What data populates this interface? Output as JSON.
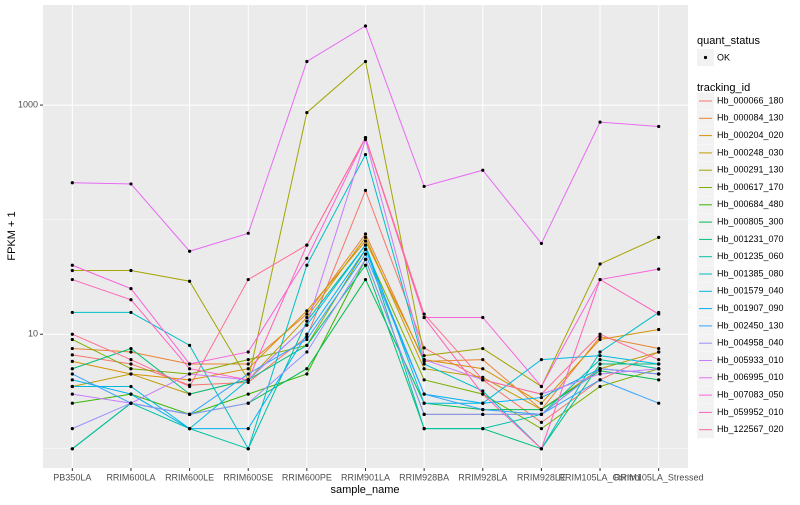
{
  "chart_data": {
    "type": "line",
    "x_label": "sample_name",
    "y_label": "FPKM + 1",
    "log_y": true,
    "grid": true,
    "minor_yticks": [
      1,
      100
    ],
    "ylim": [
      0.68,
      7470
    ],
    "yticks": [
      10,
      1000
    ],
    "categories": [
      "PB350LA",
      "RRIM600LA",
      "RRIM600LE",
      "RRIM600SE",
      "RRIM600PE",
      "RRIM901LA",
      "RRIM928BA",
      "RRIM928LA",
      "RRIM928LE",
      "RRIM105LA_Control",
      "RRIM105LA_Stressed"
    ],
    "point_legend_title": "quant_status",
    "point_legend_label": "OK",
    "point_color": "#000000",
    "legend_title": "tracking_id",
    "series": [
      {
        "name": "Hb_000066_180",
        "color": "#F8766D",
        "values": [
          6.6,
          5.5,
          3.6,
          3.8,
          9.5,
          180,
          7.6,
          4.0,
          1.7,
          4.0,
          7.0
        ]
      },
      {
        "name": "Hb_000084_130",
        "color": "#EA8331",
        "values": [
          7.5,
          7,
          5.5,
          5.5,
          15,
          75,
          5.8,
          6,
          2.2,
          9.5,
          7.5
        ]
      },
      {
        "name": "Hb_000204_020",
        "color": "#D89000",
        "values": [
          5.8,
          4.5,
          4.0,
          5,
          16,
          65,
          6,
          5,
          2.5,
          9,
          11
        ]
      },
      {
        "name": "Hb_000248_030",
        "color": "#C09B00",
        "values": [
          3.5,
          4.5,
          3.0,
          4,
          14,
          70,
          5,
          4.2,
          2.2,
          5,
          7
        ]
      },
      {
        "name": "Hb_000291_130",
        "color": "#A3A500",
        "values": [
          36,
          36,
          29,
          4,
          860,
          2400,
          6.5,
          7.5,
          3.5,
          41,
          70
        ]
      },
      {
        "name": "Hb_000617_170",
        "color": "#7CAE00",
        "values": [
          9,
          5,
          4.5,
          6,
          8,
          55,
          4,
          3,
          1.5,
          3.5,
          5
        ]
      },
      {
        "name": "Hb_000684_480",
        "color": "#39B600",
        "values": [
          2.5,
          3,
          2,
          3,
          4.5,
          45,
          2,
          2,
          2,
          5,
          4.5
        ]
      },
      {
        "name": "Hb_000805_300",
        "color": "#00BB4E",
        "values": [
          1.0,
          2.5,
          2.0,
          2.5,
          5,
          30,
          2.5,
          2.2,
          2.2,
          4.8,
          4
        ]
      },
      {
        "name": "Hb_001231_070",
        "color": "#00BF7D",
        "values": [
          5,
          7.5,
          3,
          4,
          8,
          40,
          1.5,
          1.5,
          1,
          5.5,
          5.5
        ]
      },
      {
        "name": "Hb_001235_060",
        "color": "#00C1A3",
        "values": [
          1,
          2.5,
          1.5,
          1,
          13,
          60,
          1.5,
          1.5,
          2,
          6,
          5
        ]
      },
      {
        "name": "Hb_001385_080",
        "color": "#00BFC4",
        "values": [
          15.5,
          15.5,
          8,
          1,
          40,
          370,
          5.5,
          3.2,
          1,
          7,
          15.5
        ]
      },
      {
        "name": "Hb_001579_040",
        "color": "#00BAE0",
        "values": [
          3.5,
          3.5,
          1.5,
          4,
          12,
          60,
          2.5,
          2.5,
          6,
          6.5,
          5.5
        ]
      },
      {
        "name": "Hb_001907_090",
        "color": "#00B0F6",
        "values": [
          4,
          3,
          1.5,
          1.5,
          10,
          55,
          3,
          2.5,
          2.8,
          5,
          4.5
        ]
      },
      {
        "name": "Hb_002450_130",
        "color": "#35A2FF",
        "values": [
          4.5,
          2.5,
          2,
          4.5,
          9,
          50,
          3,
          2.2,
          2,
          4,
          2.5
        ]
      },
      {
        "name": "Hb_004958_040",
        "color": "#9590FF",
        "values": [
          1.5,
          2.5,
          2,
          2.5,
          7,
          45,
          2,
          2,
          2,
          5,
          4.5
        ]
      },
      {
        "name": "Hb_005933_010",
        "color": "#C77CFF",
        "values": [
          3,
          2.5,
          4.5,
          4,
          12,
          500,
          6,
          4,
          3,
          4.5,
          5
        ]
      },
      {
        "name": "Hb_006995_010",
        "color": "#E76BF3",
        "values": [
          210,
          205,
          53,
          76,
          2400,
          4900,
          195,
          270,
          62,
          710,
          650
        ]
      },
      {
        "name": "Hb_007083_050",
        "color": "#FA62DB",
        "values": [
          40,
          25,
          5.5,
          7,
          46,
          520,
          14,
          14,
          3.5,
          30,
          37
        ]
      },
      {
        "name": "Hb_059952_010",
        "color": "#FF62BC",
        "values": [
          30,
          20,
          5,
          4,
          60,
          520,
          14,
          3,
          1,
          30,
          15
        ]
      },
      {
        "name": "Hb_122567_020",
        "color": "#FF6C91",
        "values": [
          10,
          6,
          3.5,
          30,
          60,
          520,
          15,
          4,
          3,
          10,
          6
        ]
      }
    ]
  }
}
